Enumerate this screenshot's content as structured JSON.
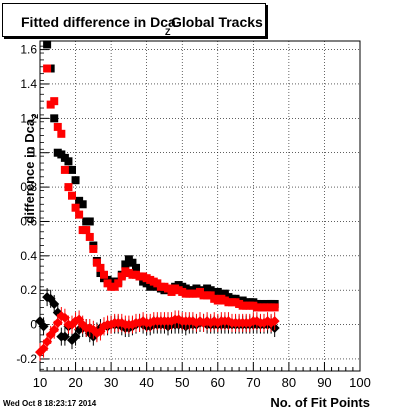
{
  "title": {
    "main": "Fitted difference in Dca",
    "subscript": "Z",
    "tail": "Global Tracks"
  },
  "timestamp": "Wed Oct  8 18:23:17 2014",
  "colors": {
    "series_black": "#000000",
    "series_red": "#ff0000",
    "grid": "#000000"
  },
  "chart_data": {
    "type": "scatter",
    "xlabel": "No. of Fit Points",
    "ylabel": "difference in Dca",
    "ylabel_subscript": "Z",
    "xlim": [
      10,
      100
    ],
    "ylim": [
      -0.27,
      1.65
    ],
    "xticks": [
      10,
      20,
      30,
      40,
      50,
      60,
      70,
      80,
      90,
      100
    ],
    "yticks": [
      -0.2,
      0,
      0.2,
      0.4,
      0.6,
      0.8,
      1,
      1.2,
      1.4,
      1.6
    ],
    "ytick_labels": [
      "-0.2",
      "0",
      "0.2",
      "0.4",
      "0.6",
      "0.8",
      "1",
      "1.2",
      "1.4",
      "1.6"
    ],
    "grid": true,
    "series": [
      {
        "color": "black",
        "marker": "square",
        "x": [
          12,
          13,
          14,
          15,
          16,
          17,
          18,
          19,
          20,
          21,
          22,
          23,
          24,
          25,
          26,
          27,
          28,
          29,
          30,
          31,
          32,
          33,
          34,
          35,
          36,
          37,
          38,
          39,
          40,
          41,
          42,
          43,
          44,
          45,
          46,
          47,
          48,
          49,
          50,
          51,
          52,
          53,
          54,
          55,
          56,
          57,
          58,
          59,
          60,
          61,
          62,
          63,
          64,
          65,
          66,
          67,
          68,
          69,
          70,
          71,
          72,
          73,
          74,
          75,
          76
        ],
        "y": [
          1.63,
          1.49,
          1.2,
          1.0,
          0.99,
          0.97,
          0.95,
          0.9,
          0.84,
          0.72,
          0.7,
          0.6,
          0.6,
          0.46,
          0.37,
          0.3,
          0.27,
          0.26,
          0.25,
          0.25,
          0.25,
          0.29,
          0.35,
          0.38,
          0.36,
          0.33,
          0.28,
          0.25,
          0.24,
          0.22,
          0.24,
          0.22,
          0.21,
          0.2,
          0.21,
          0.2,
          0.22,
          0.23,
          0.22,
          0.21,
          0.2,
          0.2,
          0.21,
          0.2,
          0.19,
          0.21,
          0.2,
          0.18,
          0.19,
          0.17,
          0.18,
          0.16,
          0.15,
          0.15,
          0.14,
          0.14,
          0.13,
          0.13,
          0.13,
          0.12,
          0.12,
          0.11,
          0.12,
          0.12,
          0.12
        ]
      },
      {
        "color": "red",
        "marker": "square",
        "x": [
          12,
          13,
          14,
          15,
          16,
          17,
          18,
          19,
          20,
          21,
          22,
          23,
          24,
          25,
          26,
          27,
          28,
          29,
          30,
          31,
          32,
          33,
          34,
          35,
          36,
          37,
          38,
          39,
          40,
          41,
          42,
          43,
          44,
          45,
          46,
          47,
          48,
          49,
          50,
          51,
          52,
          53,
          54,
          55,
          56,
          57,
          58,
          59,
          60,
          61,
          62,
          63,
          64,
          65,
          66,
          67,
          68,
          69,
          70,
          71,
          72,
          73,
          74,
          75,
          76
        ],
        "y": [
          1.49,
          1.28,
          1.3,
          1.15,
          1.11,
          0.9,
          0.8,
          0.75,
          0.68,
          0.64,
          0.55,
          0.55,
          0.51,
          0.44,
          0.36,
          0.33,
          0.29,
          0.24,
          0.22,
          0.22,
          0.24,
          0.28,
          0.31,
          0.3,
          0.29,
          0.29,
          0.28,
          0.28,
          0.27,
          0.26,
          0.25,
          0.24,
          0.22,
          0.22,
          0.21,
          0.19,
          0.21,
          0.2,
          0.19,
          0.18,
          0.18,
          0.18,
          0.18,
          0.19,
          0.17,
          0.17,
          0.17,
          0.15,
          0.14,
          0.15,
          0.14,
          0.13,
          0.13,
          0.13,
          0.12,
          0.11,
          0.11,
          0.11,
          0.11,
          0.1,
          0.1,
          0.1,
          0.1,
          0.1,
          0.1
        ]
      },
      {
        "color": "black",
        "marker": "diamond",
        "x": [
          10,
          11,
          12,
          13,
          14,
          15,
          16,
          17,
          18,
          19,
          20,
          21,
          22,
          23,
          24,
          25,
          26,
          27,
          28,
          29,
          30,
          31,
          32,
          33,
          34,
          35,
          36,
          37,
          38,
          39,
          40,
          41,
          42,
          43,
          44,
          45,
          46,
          47,
          48,
          49,
          50,
          51,
          52,
          53,
          54,
          55,
          56,
          57,
          58,
          59,
          60,
          61,
          62,
          63,
          64,
          65,
          66,
          67,
          68,
          69,
          70,
          71,
          72,
          73,
          74,
          75,
          76
        ],
        "y": [
          0.02,
          -0.01,
          0.16,
          0.15,
          0.12,
          0.07,
          -0.07,
          -0.07,
          -0.01,
          -0.09,
          -0.07,
          -0.03,
          -0.02,
          -0.02,
          -0.05,
          -0.07,
          -0.04,
          -0.02,
          -0.01,
          -0.01,
          0.0,
          0.0,
          0.0,
          -0.01,
          -0.02,
          -0.02,
          -0.01,
          0.0,
          0.01,
          0.0,
          -0.01,
          -0.01,
          0.0,
          0.0,
          0.0,
          0.0,
          -0.01,
          0.0,
          0.0,
          0.0,
          0.0,
          -0.01,
          0.0,
          0.0,
          0.0,
          0.01,
          0.01,
          0.0,
          0.0,
          0.0,
          0.0,
          0.0,
          0.0,
          0.0,
          0.0,
          0.0,
          0.0,
          0.0,
          0.0,
          0.0,
          0.0,
          0.0,
          0.0,
          0.0,
          0.0,
          0.0,
          -0.02
        ]
      },
      {
        "color": "red",
        "marker": "diamond",
        "x": [
          10,
          11,
          12,
          13,
          14,
          15,
          16,
          17,
          18,
          19,
          20,
          21,
          22,
          23,
          24,
          25,
          26,
          27,
          28,
          29,
          30,
          31,
          32,
          33,
          34,
          35,
          36,
          37,
          38,
          39,
          40,
          41,
          42,
          43,
          44,
          45,
          46,
          47,
          48,
          49,
          50,
          51,
          52,
          53,
          54,
          55,
          56,
          57,
          58,
          59,
          60,
          61,
          62,
          63,
          64,
          65,
          66,
          67,
          68,
          69,
          70,
          71,
          72,
          73,
          74,
          75,
          76
        ],
        "y": [
          -0.16,
          -0.14,
          -0.1,
          -0.06,
          -0.03,
          0.01,
          0.05,
          0.04,
          0.0,
          0.0,
          0.02,
          0.03,
          0.0,
          -0.02,
          -0.02,
          -0.03,
          -0.05,
          -0.04,
          -0.01,
          0.0,
          0.0,
          0.01,
          0.01,
          0.01,
          0.0,
          0.0,
          0.0,
          0.01,
          0.01,
          0.02,
          0.01,
          0.01,
          0.02,
          0.02,
          0.02,
          0.02,
          0.02,
          0.02,
          0.03,
          0.03,
          0.02,
          0.02,
          0.02,
          0.02,
          0.01,
          0.02,
          0.01,
          0.02,
          0.01,
          0.02,
          0.01,
          0.02,
          0.02,
          0.02,
          0.01,
          0.01,
          0.01,
          0.01,
          0.01,
          0.01,
          0.02,
          0.02,
          0.01,
          0.01,
          0.02,
          0.01,
          0.02
        ]
      }
    ]
  }
}
